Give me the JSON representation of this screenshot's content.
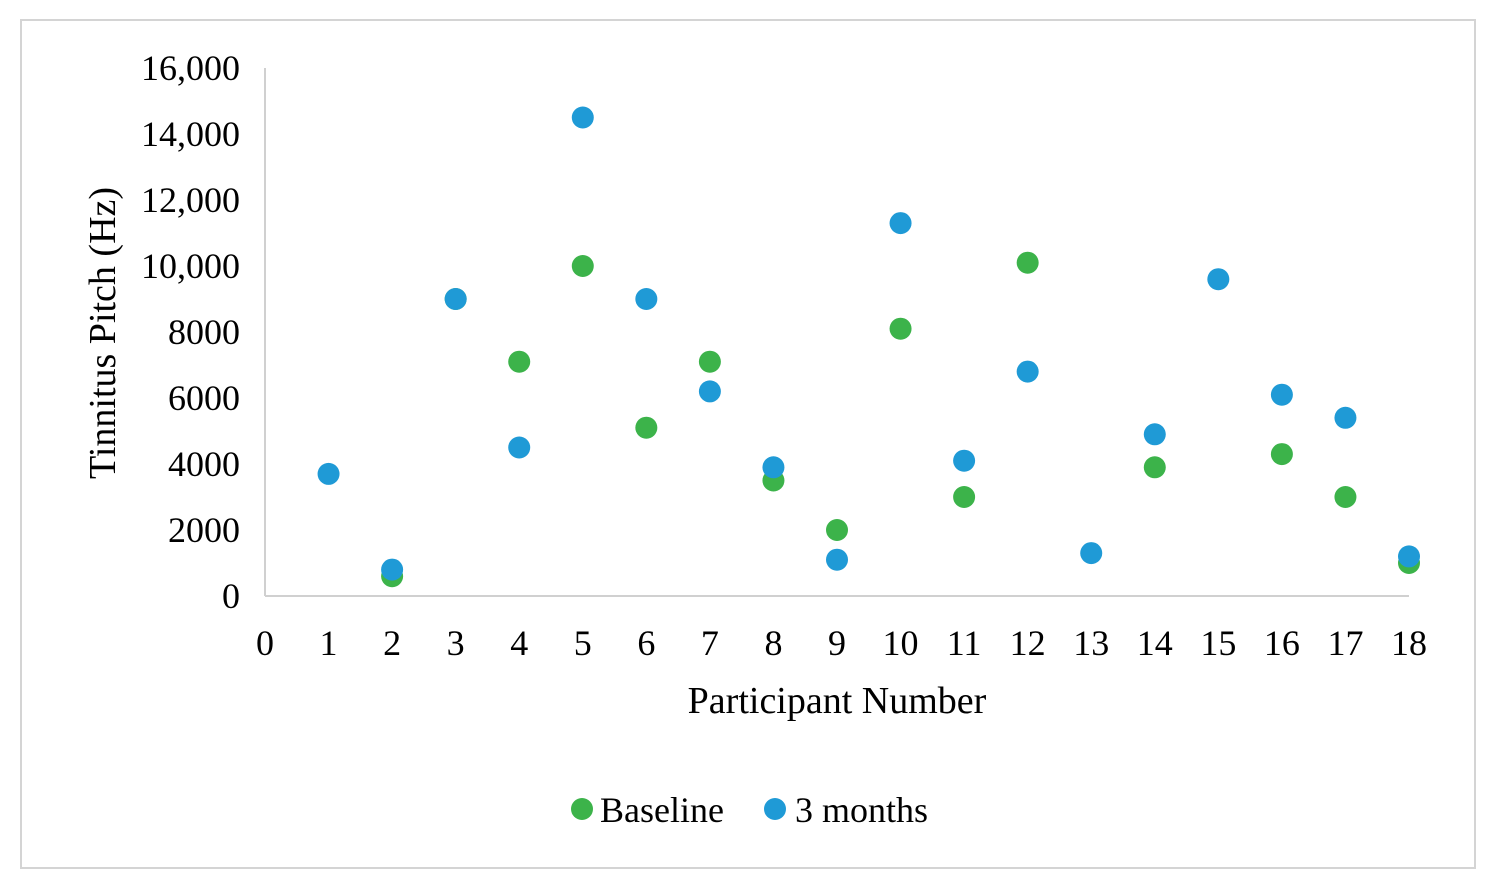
{
  "chart_data": {
    "type": "scatter",
    "title": "",
    "xlabel": "Participant Number",
    "ylabel": "Tinnitus Pitch (Hz)",
    "xlim": [
      0,
      18
    ],
    "ylim": [
      0,
      16000
    ],
    "x_ticks": [
      0,
      1,
      2,
      3,
      4,
      5,
      6,
      7,
      8,
      9,
      10,
      11,
      12,
      13,
      14,
      15,
      16,
      17,
      18
    ],
    "y_tick_values": [
      0,
      2000,
      4000,
      6000,
      8000,
      10000,
      12000,
      14000,
      16000
    ],
    "y_tick_labels": [
      "0",
      "2000",
      "4000",
      "6000",
      "8000",
      "10,000",
      "12,000",
      "14,000",
      "16,000"
    ],
    "grid": false,
    "legend_position": "bottom",
    "series": [
      {
        "name": "Baseline",
        "color": "#3cb34a",
        "points": [
          {
            "x": 2,
            "y": 600
          },
          {
            "x": 3,
            "y": 9000
          },
          {
            "x": 4,
            "y": 7100
          },
          {
            "x": 5,
            "y": 10000
          },
          {
            "x": 6,
            "y": 5100
          },
          {
            "x": 7,
            "y": 7100
          },
          {
            "x": 8,
            "y": 3500
          },
          {
            "x": 9,
            "y": 2000
          },
          {
            "x": 10,
            "y": 8100
          },
          {
            "x": 11,
            "y": 3000
          },
          {
            "x": 12,
            "y": 10100
          },
          {
            "x": 14,
            "y": 3900
          },
          {
            "x": 16,
            "y": 4300
          },
          {
            "x": 17,
            "y": 3000
          },
          {
            "x": 18,
            "y": 1000
          }
        ]
      },
      {
        "name": "3 months",
        "color": "#1f9ad6",
        "points": [
          {
            "x": 1,
            "y": 3700
          },
          {
            "x": 2,
            "y": 800
          },
          {
            "x": 3,
            "y": 9000
          },
          {
            "x": 4,
            "y": 4500
          },
          {
            "x": 5,
            "y": 14500
          },
          {
            "x": 6,
            "y": 9000
          },
          {
            "x": 7,
            "y": 6200
          },
          {
            "x": 8,
            "y": 3900
          },
          {
            "x": 9,
            "y": 1100
          },
          {
            "x": 10,
            "y": 11300
          },
          {
            "x": 11,
            "y": 4100
          },
          {
            "x": 12,
            "y": 6800
          },
          {
            "x": 13,
            "y": 1300
          },
          {
            "x": 14,
            "y": 4900
          },
          {
            "x": 15,
            "y": 9600
          },
          {
            "x": 16,
            "y": 6100
          },
          {
            "x": 17,
            "y": 5400
          },
          {
            "x": 18,
            "y": 1200
          }
        ]
      }
    ]
  }
}
